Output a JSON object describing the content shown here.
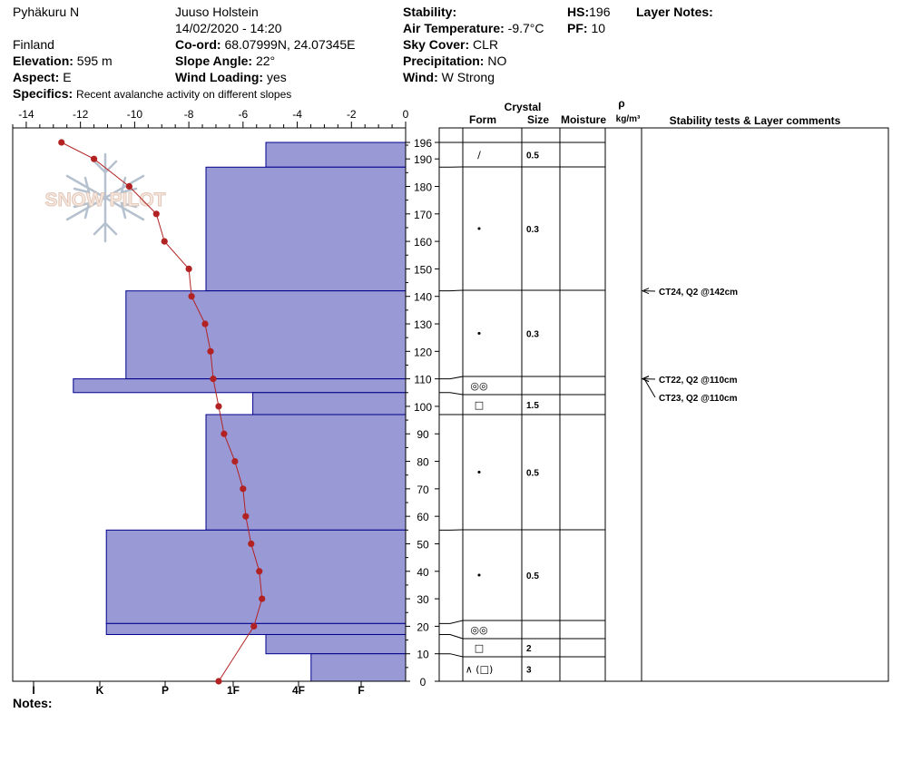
{
  "header": {
    "location": "Pyhäkuru N",
    "country": "Finland",
    "elevation_label": "Elevation:",
    "elevation": "595 m",
    "aspect_label": "Aspect:",
    "aspect": "E",
    "specifics_label": "Specifics:",
    "specifics": "Recent avalanche activity on different slopes",
    "observer": "Juuso Holstein",
    "datetime": "14/02/2020 - 14:20",
    "coord_label": "Co-ord:",
    "coord": "68.07999N, 24.07345E",
    "slope_label": "Slope Angle:",
    "slope": "22°",
    "wind_loading_label": "Wind Loading:",
    "wind_loading": "yes",
    "stability_label": "Stability:",
    "stability": "",
    "air_temp_label": "Air Temperature:",
    "air_temp": "-9.7°C",
    "sky_label": "Sky Cover:",
    "sky": "CLR",
    "precip_label": "Precipitation:",
    "precip": "NO",
    "wind_label": "Wind:",
    "wind": "W Strong",
    "hs_label": "HS:",
    "hs": "196",
    "pf_label": "PF:",
    "pf": "10",
    "layer_notes_label": "Layer Notes:",
    "notes_label": "Notes:"
  },
  "watermark": "SNOW PILOT",
  "chart_data": {
    "type": "line",
    "title": "",
    "temperature_axis": {
      "ticks": [
        "-14",
        "-12",
        "-10",
        "-8",
        "-6",
        "-4",
        "-2",
        "0"
      ],
      "range": [
        -14.5,
        0
      ]
    },
    "hardness_axis": {
      "labels": [
        "I",
        "K",
        "P",
        "1F",
        "4F",
        "F"
      ]
    },
    "height_axis": {
      "ticks": [
        "0",
        "10",
        "20",
        "30",
        "40",
        "50",
        "60",
        "70",
        "80",
        "90",
        "100",
        "110",
        "120",
        "130",
        "140",
        "150",
        "160",
        "170",
        "180",
        "190",
        "196"
      ],
      "range": [
        0,
        196
      ]
    },
    "temperature_profile": [
      {
        "h": 196,
        "t": -12.7
      },
      {
        "h": 190,
        "t": -11.5
      },
      {
        "h": 180,
        "t": -10.2
      },
      {
        "h": 170,
        "t": -9.2
      },
      {
        "h": 160,
        "t": -8.9
      },
      {
        "h": 150,
        "t": -8.0
      },
      {
        "h": 140,
        "t": -7.9
      },
      {
        "h": 130,
        "t": -7.4
      },
      {
        "h": 120,
        "t": -7.2
      },
      {
        "h": 110,
        "t": -7.1
      },
      {
        "h": 100,
        "t": -6.9
      },
      {
        "h": 90,
        "t": -6.7
      },
      {
        "h": 80,
        "t": -6.3
      },
      {
        "h": 70,
        "t": -6.0
      },
      {
        "h": 60,
        "t": -5.9
      },
      {
        "h": 50,
        "t": -5.7
      },
      {
        "h": 40,
        "t": -5.4
      },
      {
        "h": 30,
        "t": -5.3
      },
      {
        "h": 20,
        "t": -5.6
      },
      {
        "h": 0,
        "t": -6.9
      }
    ],
    "layers": [
      {
        "top": 196,
        "bottom": 187,
        "hardness": 3.5,
        "form": "/",
        "size": "0.5"
      },
      {
        "top": 187,
        "bottom": 142,
        "hardness": 2.6,
        "form": "•",
        "size": "0.3"
      },
      {
        "top": 142,
        "bottom": 110,
        "hardness": 1.4,
        "form": "•",
        "size": "0.3"
      },
      {
        "top": 110,
        "bottom": 105,
        "hardness": 0.6,
        "form": "◎◎",
        "size": ""
      },
      {
        "top": 105,
        "bottom": 97,
        "hardness": 3.3,
        "form": "□",
        "size": "1.5"
      },
      {
        "top": 97,
        "bottom": 55,
        "hardness": 2.6,
        "form": "•",
        "size": "0.5"
      },
      {
        "top": 55,
        "bottom": 21,
        "hardness": 1.1,
        "form": "•",
        "size": "0.5"
      },
      {
        "top": 21,
        "bottom": 17,
        "hardness": 1.1,
        "form": "◎◎",
        "size": ""
      },
      {
        "top": 17,
        "bottom": 10,
        "hardness": 3.5,
        "form": "□",
        "size": "2"
      },
      {
        "top": 10,
        "bottom": 0,
        "hardness": 4.2,
        "form": "∧ (□)",
        "size": "3"
      }
    ],
    "column_headers": {
      "crystal": "Crystal",
      "form": "Form",
      "size": "Size",
      "moisture": "Moisture",
      "rho": "ρ",
      "density_unit": "kg/m³",
      "stability_comments": "Stability tests & Layer comments"
    },
    "stability_tests": [
      {
        "h": 142,
        "text": "CT24, Q2 @142cm"
      },
      {
        "h": 110,
        "text": "CT22, Q2 @110cm"
      },
      {
        "h": 110,
        "text": "CT23, Q2 @110cm"
      }
    ]
  },
  "colors": {
    "fill": "#9999d6",
    "stroke": "#00008b",
    "temp": "#b22222"
  }
}
